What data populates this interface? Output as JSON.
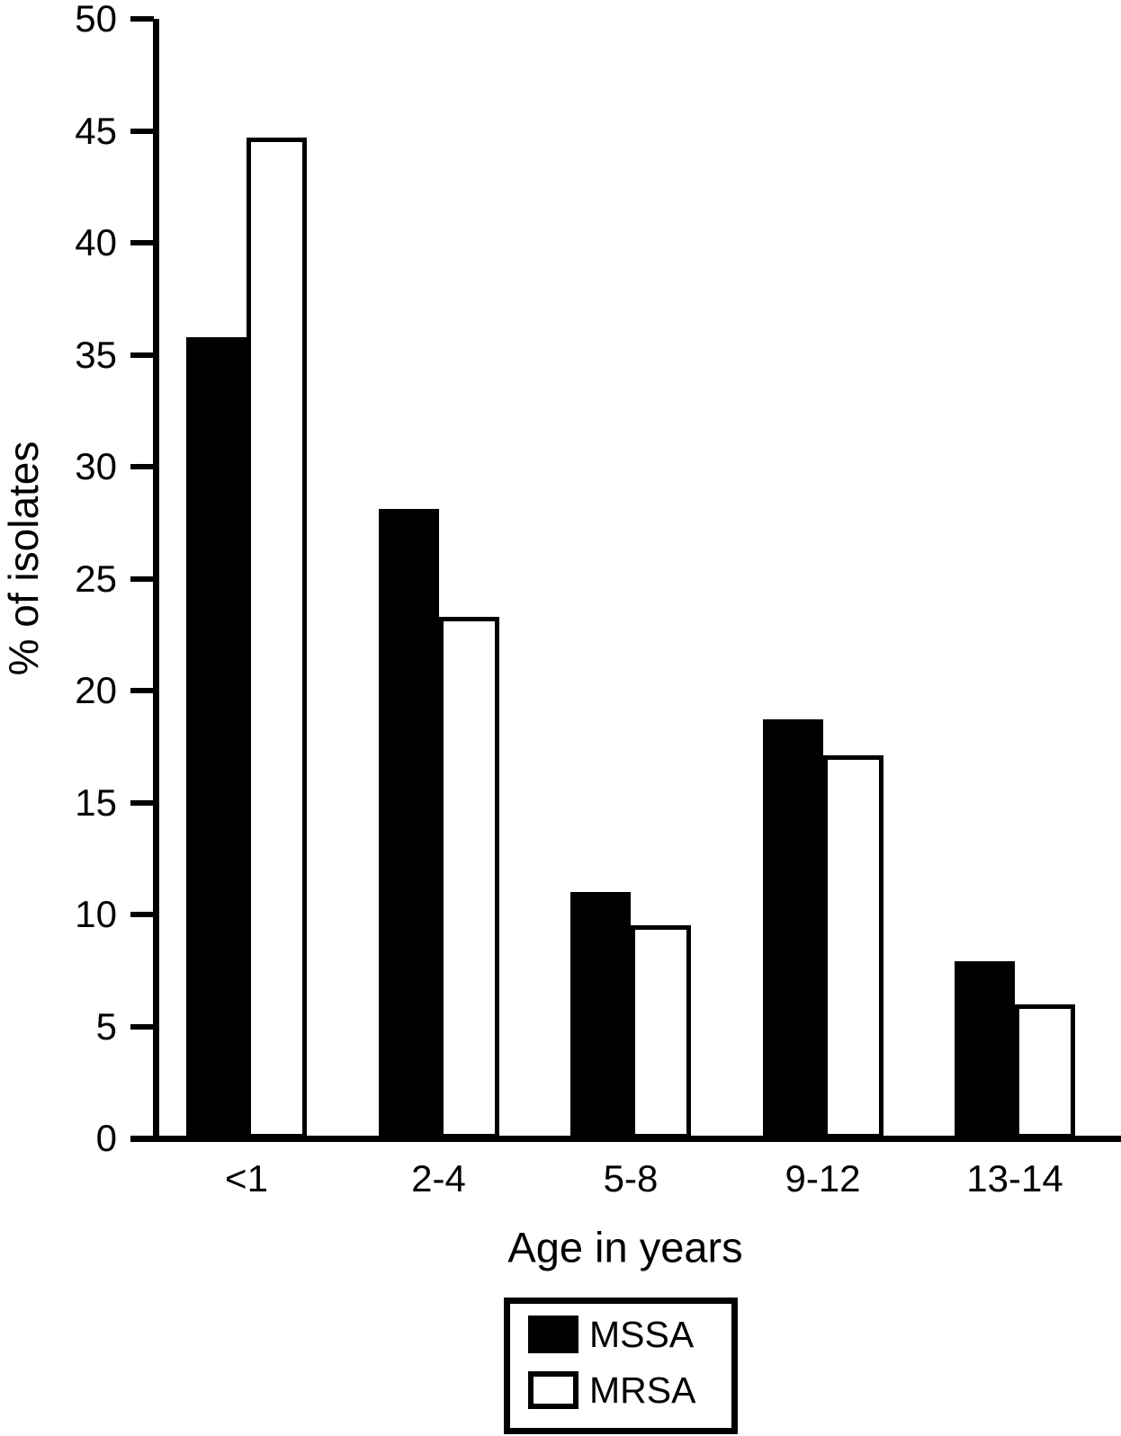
{
  "figure": {
    "background": "#ffffff",
    "ink": "#000000"
  },
  "chart_data": {
    "type": "bar",
    "title": "",
    "categories": [
      "<1",
      "2-4",
      "5-8",
      "9-12",
      "13-14"
    ],
    "series": [
      {
        "name": "MSSA",
        "style": "filled",
        "color": "#000000",
        "values": [
          35.8,
          28.1,
          11.0,
          18.7,
          7.9
        ]
      },
      {
        "name": "MRSA",
        "style": "outlined",
        "color": "#ffffff",
        "values": [
          44.7,
          23.3,
          9.5,
          17.1,
          6.0
        ]
      }
    ],
    "xlabel": "Age in years",
    "ylabel": "% of isolates",
    "ylim": [
      0,
      50
    ],
    "ytick_step": 5,
    "yticks": [
      0,
      5,
      10,
      15,
      20,
      25,
      30,
      35,
      40,
      45,
      50
    ],
    "grid": false,
    "legend": {
      "position": "below-x-axis-centered"
    }
  }
}
